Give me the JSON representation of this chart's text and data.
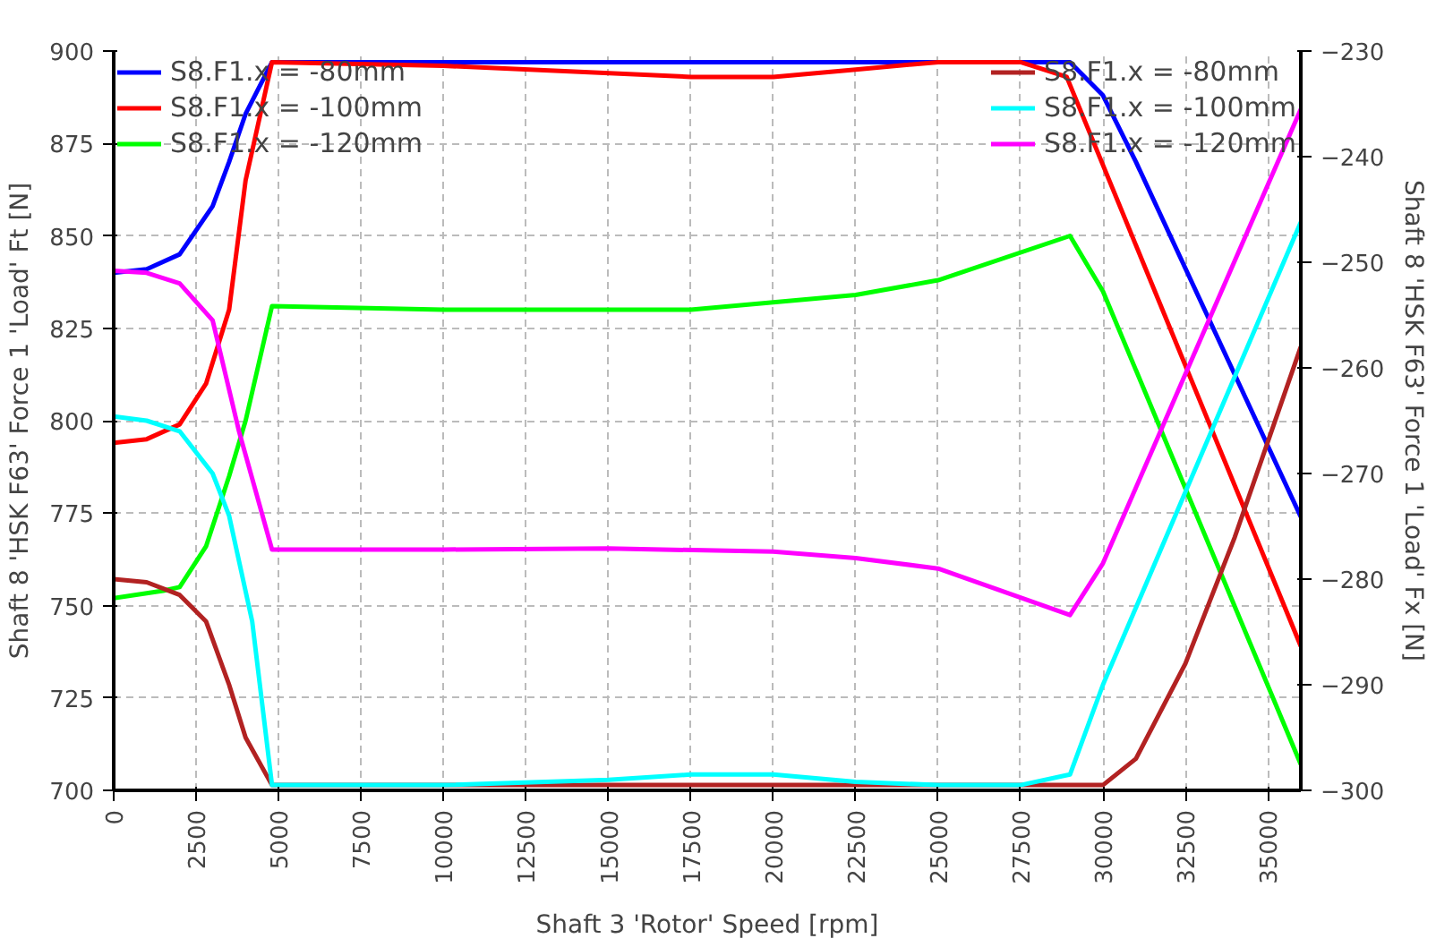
{
  "chart_data": {
    "type": "line",
    "xlabel": "Shaft 3 'Rotor' Speed [rpm]",
    "ylabel": "Shaft 8 'HSK F63' Force 1 'Load' Ft [N]",
    "y2label": "Shaft 8 'HSK F63' Force 1 'Load' Fx [N]",
    "xlim": [
      0,
      36000
    ],
    "xticks": [
      0,
      2500,
      5000,
      7500,
      10000,
      12500,
      15000,
      17500,
      20000,
      22500,
      25000,
      27500,
      30000,
      32500,
      35000
    ],
    "ylim": [
      700,
      900
    ],
    "yticks": [
      700,
      725,
      750,
      775,
      800,
      825,
      850,
      875,
      900
    ],
    "y2lim": [
      -300,
      -230
    ],
    "y2ticks": [
      -300,
      -290,
      -280,
      -270,
      -260,
      -250,
      -240,
      -230
    ],
    "grid": true,
    "legend": "top",
    "line_style": "solid",
    "series": [
      {
        "name": "S8.F1.x = -80mm",
        "color": "#0000ff",
        "x": [
          0,
          1000,
          2000,
          3000,
          3500,
          4000,
          4800,
          29000,
          30000,
          31000,
          36000
        ],
        "values": [
          840,
          841,
          845,
          858,
          870,
          883,
          897,
          897,
          888,
          870,
          774
        ]
      },
      {
        "name": "S8.F1.x = -100mm",
        "color": "#ff0000",
        "x": [
          0,
          1000,
          2000,
          2800,
          3500,
          4000,
          4800,
          10000,
          17500,
          20000,
          22500,
          25000,
          27500,
          28900,
          36000
        ],
        "values": [
          794,
          795,
          799,
          810,
          830,
          865,
          897,
          896,
          893,
          893,
          895,
          897,
          897,
          893,
          739
        ]
      },
      {
        "name": "S8.F1.x = -120mm",
        "color": "#00ff00",
        "x": [
          0,
          1500,
          2000,
          2800,
          3500,
          4000,
          4800,
          10000,
          17500,
          22500,
          25000,
          29000,
          30000,
          36000
        ],
        "values": [
          752,
          754,
          755,
          766,
          785,
          800,
          831,
          830,
          830,
          834,
          838,
          850,
          835,
          707
        ]
      },
      {
        "name": "S8.F1.x = -80mm",
        "color": "#b22222",
        "axis": "y2",
        "x": [
          0,
          1000,
          2000,
          2800,
          3500,
          4000,
          4800,
          28000,
          30000,
          31000,
          32500,
          34000,
          36000
        ],
        "values": [
          -280,
          -280.3,
          -281.5,
          -284,
          -290,
          -295,
          -299.5,
          -299.5,
          -299.5,
          -297,
          -288,
          -276,
          -258
        ]
      },
      {
        "name": "S8.F1.x = -100mm",
        "color": "#00ffff",
        "axis": "y2",
        "x": [
          0,
          1000,
          2000,
          3000,
          3500,
          4200,
          4800,
          10000,
          15000,
          17500,
          20000,
          22500,
          25000,
          27500,
          29000,
          30000,
          36000
        ],
        "values": [
          -264.6,
          -265,
          -266,
          -270,
          -274,
          -284,
          -299.5,
          -299.5,
          -299,
          -298.5,
          -298.5,
          -299.2,
          -299.5,
          -299.5,
          -298.5,
          -290,
          -246.2
        ]
      },
      {
        "name": "S8.F1.x = -120mm",
        "color": "#ff00ff",
        "axis": "y2",
        "x": [
          0,
          1000,
          2000,
          3000,
          3800,
          4800,
          10000,
          15000,
          20000,
          22500,
          25000,
          29000,
          30000,
          36000
        ],
        "values": [
          -250.8,
          -251,
          -252,
          -255.5,
          -266,
          -277.2,
          -277.2,
          -277.1,
          -277.4,
          -278,
          -279,
          -283.4,
          -278.5,
          -235.5
        ]
      }
    ]
  }
}
